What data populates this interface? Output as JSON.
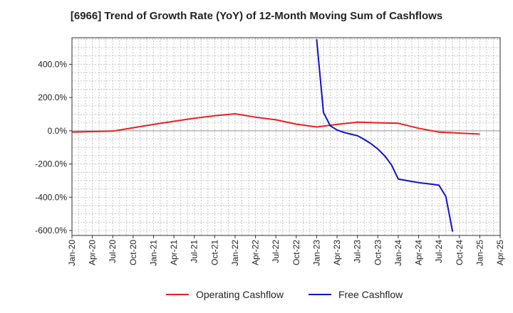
{
  "chart_data": {
    "type": "line",
    "title": "[6966]  Trend of Growth Rate (YoY) of 12-Month Moving Sum of Cashflows",
    "xlabel": "",
    "ylabel": "",
    "ylim": [
      -630,
      560
    ],
    "yticks": [
      400,
      200,
      0,
      -200,
      -400,
      -600
    ],
    "ytick_labels": [
      "400.0%",
      "200.0%",
      "0.0%",
      "-200.0%",
      "-400.0%",
      "-600.0%"
    ],
    "x_range": [
      "2020-01",
      "2025-04"
    ],
    "xtick_labels": [
      "Jan-20",
      "Apr-20",
      "Jul-20",
      "Oct-20",
      "Jan-21",
      "Apr-21",
      "Jul-21",
      "Oct-21",
      "Jan-22",
      "Apr-22",
      "Jul-22",
      "Oct-22",
      "Jan-23",
      "Apr-23",
      "Jul-23",
      "Oct-23",
      "Jan-24",
      "Apr-24",
      "Jul-24",
      "Oct-24",
      "Jan-25",
      "Apr-25"
    ],
    "grid": true,
    "legend_position": "bottom",
    "series": [
      {
        "name": "Operating Cashflow",
        "color": "#e8201c",
        "x": [
          "2020-01",
          "2020-04",
          "2020-07",
          "2020-10",
          "2021-01",
          "2021-04",
          "2021-07",
          "2021-10",
          "2022-01",
          "2022-04",
          "2022-07",
          "2022-10",
          "2023-01",
          "2023-04",
          "2023-07",
          "2023-10",
          "2024-01",
          "2024-04",
          "2024-07",
          "2024-10",
          "2025-01"
        ],
        "y": [
          -8,
          -5,
          -2,
          18,
          38,
          57,
          75,
          90,
          102,
          82,
          66,
          40,
          23,
          38,
          52,
          48,
          45,
          15,
          -8,
          -14,
          -20
        ]
      },
      {
        "name": "Free Cashflow",
        "color": "#1010d0",
        "x": [
          "2023-01",
          "2023-02",
          "2023-03",
          "2023-04",
          "2023-05",
          "2023-06",
          "2023-07",
          "2023-08",
          "2023-09",
          "2023-10",
          "2023-11",
          "2023-12",
          "2024-01",
          "2024-02",
          "2024-03",
          "2024-04",
          "2024-05",
          "2024-06",
          "2024-07",
          "2024-08",
          "2024-09"
        ],
        "y": [
          550,
          110,
          30,
          5,
          -10,
          -20,
          -30,
          -52,
          -78,
          -110,
          -150,
          -205,
          -290,
          -298,
          -305,
          -312,
          -317,
          -322,
          -328,
          -395,
          -607
        ]
      }
    ]
  }
}
